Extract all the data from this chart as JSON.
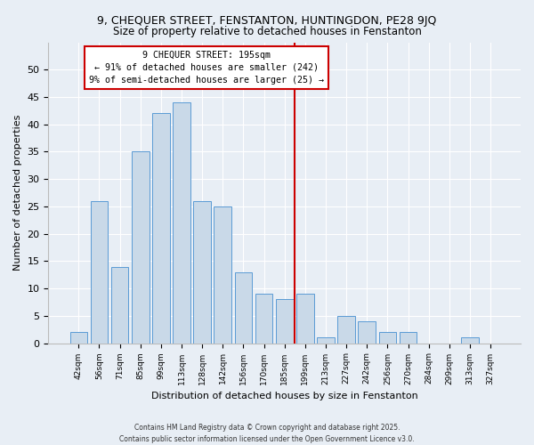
{
  "title": "9, CHEQUER STREET, FENSTANTON, HUNTINGDON, PE28 9JQ",
  "subtitle": "Size of property relative to detached houses in Fenstanton",
  "xlabel": "Distribution of detached houses by size in Fenstanton",
  "ylabel": "Number of detached properties",
  "bar_labels": [
    "42sqm",
    "56sqm",
    "71sqm",
    "85sqm",
    "99sqm",
    "113sqm",
    "128sqm",
    "142sqm",
    "156sqm",
    "170sqm",
    "185sqm",
    "199sqm",
    "213sqm",
    "227sqm",
    "242sqm",
    "256sqm",
    "270sqm",
    "284sqm",
    "299sqm",
    "313sqm",
    "327sqm"
  ],
  "bar_values": [
    2,
    26,
    14,
    35,
    42,
    44,
    26,
    25,
    13,
    9,
    8,
    9,
    1,
    5,
    4,
    2,
    2,
    0,
    0,
    1,
    0
  ],
  "bar_color": "#c9d9e8",
  "bar_edge_color": "#5b9bd5",
  "vline_color": "#cc0000",
  "annotation_line1": "9 CHEQUER STREET: 195sqm",
  "annotation_line2": "← 91% of detached houses are smaller (242)",
  "annotation_line3": "9% of semi-detached houses are larger (25) →",
  "annotation_box_color": "#ffffff",
  "annotation_box_edge": "#cc0000",
  "ylim": [
    0,
    55
  ],
  "yticks": [
    0,
    5,
    10,
    15,
    20,
    25,
    30,
    35,
    40,
    45,
    50
  ],
  "footer_line1": "Contains HM Land Registry data © Crown copyright and database right 2025.",
  "footer_line2": "Contains public sector information licensed under the Open Government Licence v3.0.",
  "bg_color": "#e8eef5",
  "plot_bg_color": "#e8eef5",
  "vline_index": 10.5
}
